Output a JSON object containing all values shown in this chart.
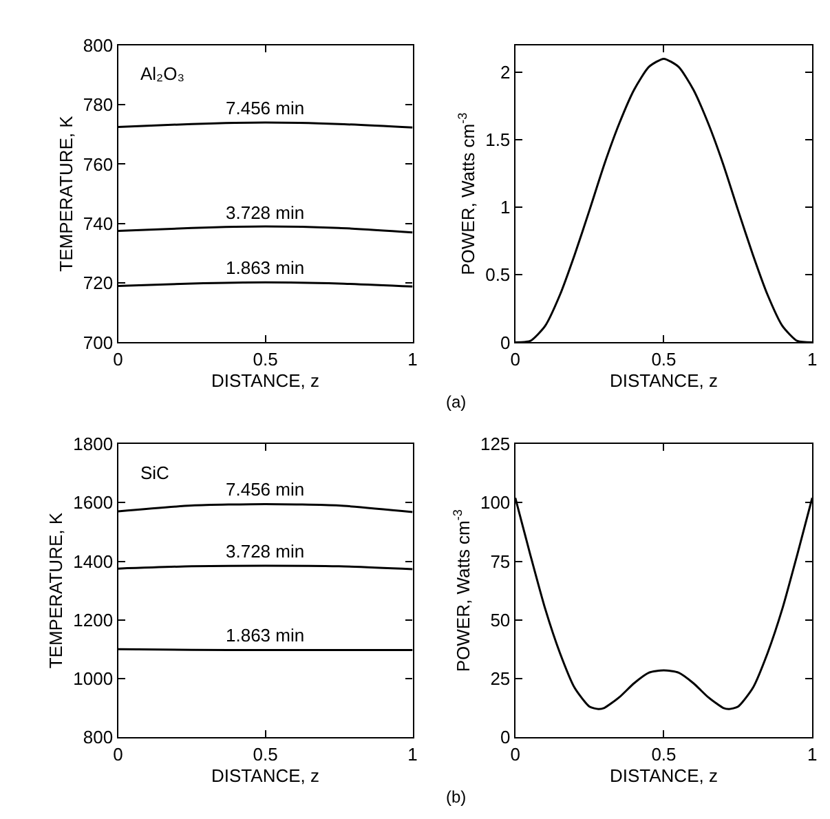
{
  "chart_data": [
    {
      "type": "line",
      "xlabel": "DISTANCE, z",
      "ylabel": "TEMPERATURE, K",
      "xlim": [
        0,
        1
      ],
      "xticks": [
        0,
        0.5,
        1
      ],
      "ylim": [
        700,
        800
      ],
      "yticks": [
        700,
        720,
        740,
        760,
        780,
        800
      ],
      "annotations": [
        "Al₂O₃"
      ],
      "x": [
        0,
        0.25,
        0.5,
        0.75,
        1
      ],
      "series": [
        {
          "name": "7.456 min",
          "color": "#000000",
          "values": [
            772.5,
            773.5,
            774,
            773.5,
            772.3
          ]
        },
        {
          "name": "3.728 min",
          "color": "#000000",
          "values": [
            737.5,
            738.5,
            739,
            738.5,
            737
          ]
        },
        {
          "name": "1.863 min",
          "color": "#000000",
          "values": [
            719,
            719.8,
            720.2,
            719.8,
            718.8
          ]
        }
      ]
    },
    {
      "type": "line",
      "xlabel": "DISTANCE, z",
      "ylabel": "POWER, Watts cm$^{-3}$",
      "xlim": [
        0,
        1
      ],
      "xticks": [
        0,
        0.5,
        1
      ],
      "ylim": [
        0,
        2.2
      ],
      "yticks": [
        0,
        0.5,
        1,
        1.5,
        2
      ],
      "annotations": [
        "(a)"
      ],
      "x": [
        0,
        0.05,
        0.1,
        0.15,
        0.2,
        0.25,
        0.3,
        0.35,
        0.4,
        0.45,
        0.5,
        0.55,
        0.6,
        0.65,
        0.7,
        0.75,
        0.8,
        0.85,
        0.9,
        0.95,
        1
      ],
      "series": [
        {
          "color": "#000000",
          "values": [
            0,
            0.01,
            0.12,
            0.35,
            0.65,
            0.98,
            1.32,
            1.62,
            1.87,
            2.04,
            2.1,
            2.04,
            1.87,
            1.62,
            1.32,
            0.98,
            0.65,
            0.35,
            0.12,
            0.01,
            0
          ]
        }
      ]
    },
    {
      "type": "line",
      "xlabel": "DISTANCE, z",
      "ylabel": "TEMPERATURE, K",
      "xlim": [
        0,
        1
      ],
      "xticks": [
        0,
        0.5,
        1
      ],
      "ylim": [
        800,
        1800
      ],
      "yticks": [
        800,
        1000,
        1200,
        1400,
        1600,
        1800
      ],
      "annotations": [
        "SiC"
      ],
      "x": [
        0,
        0.25,
        0.5,
        0.75,
        1
      ],
      "series": [
        {
          "name": "7.456 min",
          "color": "#000000",
          "values": [
            1570,
            1590,
            1595,
            1590,
            1568
          ]
        },
        {
          "name": "3.728 min",
          "color": "#000000",
          "values": [
            1375,
            1383,
            1385,
            1383,
            1373
          ]
        },
        {
          "name": "1.863 min",
          "color": "#000000",
          "values": [
            1100,
            1098,
            1097,
            1097,
            1097
          ]
        }
      ]
    },
    {
      "type": "line",
      "xlabel": "DISTANCE, z",
      "ylabel": "POWER, Watts cm$^{-3}$",
      "xlim": [
        0,
        1
      ],
      "xticks": [
        0,
        0.5,
        1
      ],
      "ylim": [
        0,
        125
      ],
      "yticks": [
        0,
        25,
        50,
        75,
        100,
        125
      ],
      "annotations": [
        "(b)"
      ],
      "x": [
        0,
        0.05,
        0.1,
        0.15,
        0.2,
        0.25,
        0.28,
        0.3,
        0.35,
        0.4,
        0.45,
        0.5,
        0.55,
        0.6,
        0.65,
        0.7,
        0.72,
        0.75,
        0.8,
        0.85,
        0.9,
        0.95,
        1
      ],
      "series": [
        {
          "color": "#000000",
          "values": [
            102,
            78,
            55,
            36,
            21,
            13,
            12,
            12.5,
            17,
            23,
            27.5,
            28.5,
            27.5,
            23,
            17,
            12.5,
            12,
            13,
            21,
            36,
            55,
            78,
            102
          ]
        }
      ]
    }
  ]
}
